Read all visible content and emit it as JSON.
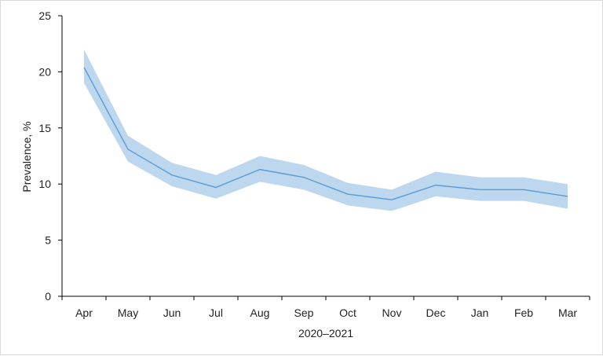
{
  "chart_data": {
    "type": "area",
    "title": "",
    "xlabel": "2020–2021",
    "ylabel": "Prevalence, %",
    "categories": [
      "Apr",
      "May",
      "Jun",
      "Jul",
      "Aug",
      "Sep",
      "Oct",
      "Nov",
      "Dec",
      "Jan",
      "Feb",
      "Mar"
    ],
    "series": [
      {
        "values": [
          20.4,
          13.1,
          10.8,
          9.7,
          11.3,
          10.6,
          9.1,
          8.6,
          9.9,
          9.5,
          9.5,
          8.9
        ],
        "lower": [
          19.0,
          12.0,
          9.8,
          8.7,
          10.2,
          9.5,
          8.1,
          7.6,
          8.9,
          8.5,
          8.5,
          7.8
        ],
        "upper": [
          22.0,
          14.3,
          11.9,
          10.8,
          12.5,
          11.7,
          10.1,
          9.5,
          11.1,
          10.6,
          10.6,
          10.0
        ],
        "line_color": "#5b9bd5",
        "band_color": "#bdd7ee"
      }
    ],
    "yticks": [
      "0",
      "5",
      "10",
      "15",
      "20",
      "25"
    ],
    "ylim": [
      0,
      25
    ],
    "grid": false,
    "legend": "none"
  }
}
